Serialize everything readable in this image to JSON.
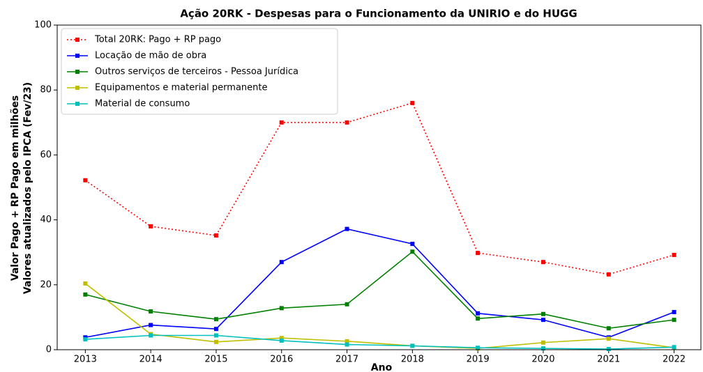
{
  "chart_data": {
    "type": "line",
    "title": "Ação 20RK - Despesas para o Funcionamento da UNIRIO e do HUGG",
    "xlabel": "Ano",
    "ylabel": [
      "Valor Pago + RP Pago em milhões",
      "Valores atualizados pelo IPCA (Fev/23)"
    ],
    "x": [
      2013,
      2014,
      2015,
      2016,
      2017,
      2018,
      2019,
      2020,
      2021,
      2022
    ],
    "xlim": [
      2012.57,
      2022.41
    ],
    "xticks": [
      2013,
      2014,
      2015,
      2016,
      2017,
      2018,
      2019,
      2020,
      2021,
      2022
    ],
    "ylim": [
      0,
      100
    ],
    "yticks": [
      0,
      20,
      40,
      60,
      80,
      100
    ],
    "grid": false,
    "legend": "upper left",
    "series": [
      {
        "name": "Total 20RK: Pago + RP pago",
        "color": "#ff0000",
        "linestyle": "dotted",
        "values": [
          52.2,
          38,
          35.2,
          70,
          70,
          76,
          29.8,
          27,
          23.2,
          29.2
        ]
      },
      {
        "name": "Locação de mão de obra",
        "color": "#0000ff",
        "linestyle": "solid",
        "values": [
          3.8,
          7.6,
          6.4,
          27,
          37.2,
          32.6,
          11.2,
          9.2,
          3.8,
          11.6
        ]
      },
      {
        "name": "Outros serviços de terceiros - Pessoa Jurídica",
        "color": "#008000",
        "linestyle": "solid",
        "values": [
          17,
          11.8,
          9.4,
          12.8,
          14,
          30.2,
          9.6,
          11,
          6.6,
          9.2
        ]
      },
      {
        "name": "Equipamentos e material permanente",
        "color": "#bfbf00",
        "linestyle": "solid",
        "values": [
          20.4,
          4.8,
          2.4,
          3.6,
          2.6,
          1.2,
          0.4,
          2.2,
          3.4,
          0.6
        ]
      },
      {
        "name": "Material de consumo",
        "color": "#00bfbf",
        "linestyle": "solid",
        "values": [
          3.2,
          4.4,
          4.4,
          2.8,
          1.6,
          1.2,
          0.6,
          0.4,
          0.2,
          0.8
        ]
      }
    ]
  }
}
